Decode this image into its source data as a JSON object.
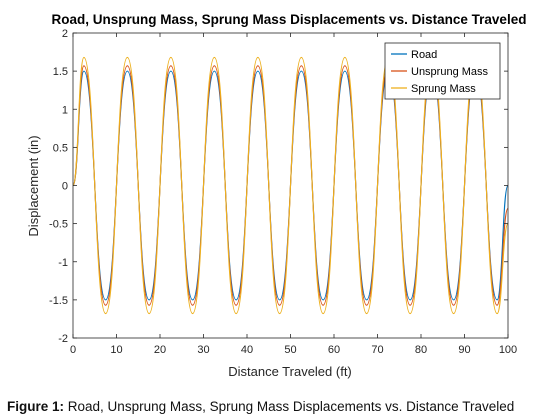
{
  "chart_data": {
    "type": "line",
    "title": "Road, Unsprung Mass, Sprung Mass Displacements vs. Distance Traveled",
    "xlabel": "Distance Traveled (ft)",
    "ylabel": "Displacement (in)",
    "xlim": [
      0,
      100
    ],
    "ylim": [
      -2,
      2
    ],
    "xticks": [
      0,
      10,
      20,
      30,
      40,
      50,
      60,
      70,
      80,
      90,
      100
    ],
    "yticks": [
      -2,
      -1.5,
      -1,
      -0.5,
      0,
      0.5,
      1,
      1.5,
      2
    ],
    "grid": false,
    "legend_position": "top-right",
    "x": [
      0,
      2.5,
      7.5,
      12.5,
      17.5,
      22.5,
      27.5,
      32.5,
      37.5,
      42.5,
      47.5,
      52.5,
      57.5,
      62.5,
      67.5,
      72.5,
      77.5,
      82.5,
      87.5,
      92.5,
      97.5,
      100
    ],
    "series": [
      {
        "name": "Road",
        "color": "#0072BD",
        "values": [
          0,
          1.5,
          -1.5,
          1.5,
          -1.5,
          1.5,
          -1.5,
          1.5,
          -1.5,
          1.5,
          -1.5,
          1.5,
          -1.5,
          1.5,
          -1.5,
          1.5,
          -1.5,
          1.5,
          -1.5,
          1.5,
          -1.5,
          0
        ]
      },
      {
        "name": "Unsprung Mass",
        "color": "#D95319",
        "values": [
          0,
          1.57,
          -1.57,
          1.57,
          -1.57,
          1.57,
          -1.57,
          1.57,
          -1.57,
          1.57,
          -1.57,
          1.57,
          -1.57,
          1.57,
          -1.57,
          1.57,
          -1.57,
          1.57,
          -1.57,
          1.57,
          -1.57,
          -0.3
        ]
      },
      {
        "name": "Sprung Mass",
        "color": "#EDB120",
        "values": [
          0,
          1.68,
          -1.68,
          1.68,
          -1.68,
          1.68,
          -1.68,
          1.68,
          -1.68,
          1.68,
          -1.68,
          1.68,
          -1.68,
          1.68,
          -1.68,
          1.68,
          -1.68,
          1.68,
          -1.68,
          1.68,
          -1.68,
          -0.5
        ]
      }
    ]
  },
  "caption": {
    "label": "Figure 1:",
    "text": "Road, Unsprung Mass, Sprung Mass Displacements vs. Distance Traveled"
  }
}
